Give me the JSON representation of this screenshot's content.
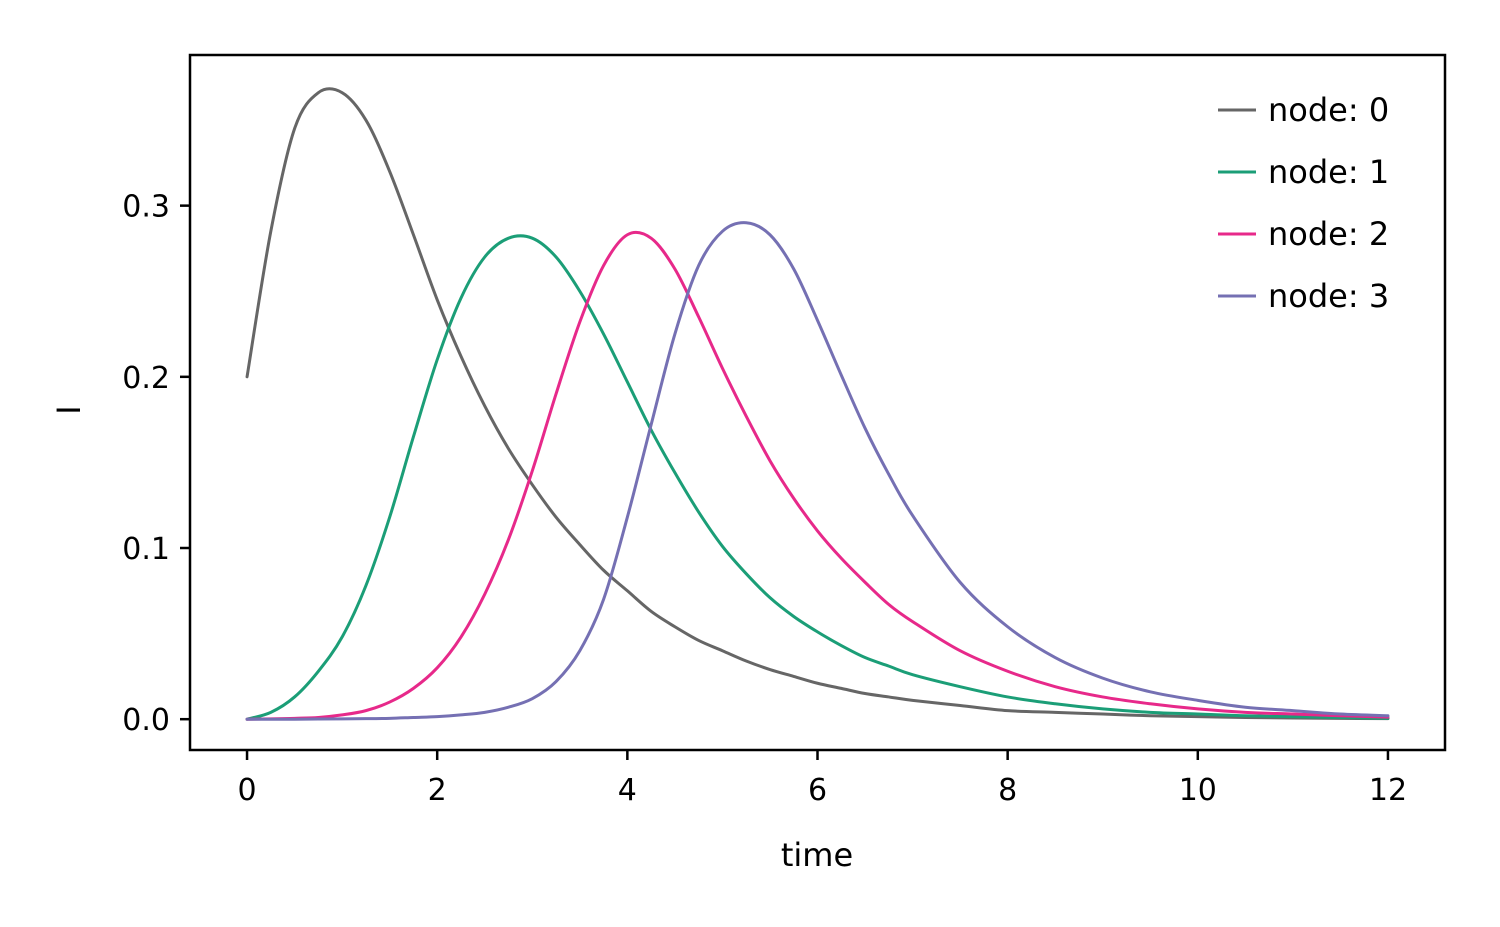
{
  "chart_data": {
    "type": "line",
    "title": "",
    "xlabel": "time",
    "ylabel": "I",
    "xlim": [
      -0.6,
      12.6
    ],
    "ylim": [
      -0.018,
      0.388
    ],
    "xticks": [
      0,
      2,
      4,
      6,
      8,
      10,
      12
    ],
    "xtick_labels": [
      "0",
      "2",
      "4",
      "6",
      "8",
      "10",
      "12"
    ],
    "yticks": [
      0.0,
      0.1,
      0.2,
      0.3
    ],
    "ytick_labels": [
      "0.0",
      "0.1",
      "0.2",
      "0.3"
    ],
    "grid": false,
    "legend_position": "top-right",
    "x": [
      0,
      0.25,
      0.5,
      0.75,
      1,
      1.25,
      1.5,
      1.75,
      2,
      2.25,
      2.5,
      2.75,
      3,
      3.25,
      3.5,
      3.75,
      4,
      4.25,
      4.5,
      4.75,
      5,
      5.25,
      5.5,
      5.75,
      6,
      6.25,
      6.5,
      6.75,
      7,
      7.5,
      8,
      8.5,
      9,
      9.5,
      10,
      10.5,
      11,
      11.5,
      12
    ],
    "series": [
      {
        "name": "node: 0",
        "color": "#666666",
        "values": [
          0.2,
          0.285,
          0.345,
          0.366,
          0.366,
          0.35,
          0.32,
          0.283,
          0.245,
          0.212,
          0.183,
          0.158,
          0.137,
          0.118,
          0.102,
          0.087,
          0.075,
          0.063,
          0.054,
          0.046,
          0.04,
          0.034,
          0.029,
          0.025,
          0.021,
          0.018,
          0.015,
          0.013,
          0.011,
          0.008,
          0.005,
          0.004,
          0.003,
          0.002,
          0.0015,
          0.001,
          0.0007,
          0.0005,
          0.0003
        ]
      },
      {
        "name": "node: 1",
        "color": "#1b9e77",
        "values": [
          0.0,
          0.004,
          0.013,
          0.028,
          0.048,
          0.078,
          0.118,
          0.165,
          0.21,
          0.246,
          0.27,
          0.281,
          0.281,
          0.27,
          0.25,
          0.225,
          0.197,
          0.169,
          0.144,
          0.121,
          0.101,
          0.085,
          0.071,
          0.06,
          0.051,
          0.043,
          0.036,
          0.031,
          0.026,
          0.019,
          0.013,
          0.009,
          0.006,
          0.004,
          0.003,
          0.002,
          0.0015,
          0.001,
          0.0005
        ]
      },
      {
        "name": "node: 2",
        "color": "#e7298a",
        "values": [
          0.0,
          0.0002,
          0.0005,
          0.001,
          0.0025,
          0.005,
          0.01,
          0.018,
          0.03,
          0.048,
          0.073,
          0.105,
          0.145,
          0.19,
          0.232,
          0.265,
          0.283,
          0.281,
          0.263,
          0.235,
          0.205,
          0.177,
          0.151,
          0.129,
          0.11,
          0.094,
          0.08,
          0.067,
          0.057,
          0.04,
          0.028,
          0.019,
          0.013,
          0.009,
          0.006,
          0.004,
          0.003,
          0.002,
          0.0012
        ]
      },
      {
        "name": "node: 3",
        "color": "#7570b3",
        "values": [
          0.0,
          0.0,
          0.0,
          0.0001,
          0.0002,
          0.0003,
          0.0005,
          0.001,
          0.0015,
          0.0025,
          0.004,
          0.007,
          0.012,
          0.022,
          0.04,
          0.07,
          0.118,
          0.172,
          0.225,
          0.265,
          0.285,
          0.29,
          0.283,
          0.263,
          0.233,
          0.201,
          0.17,
          0.143,
          0.119,
          0.08,
          0.054,
          0.036,
          0.024,
          0.016,
          0.011,
          0.007,
          0.005,
          0.003,
          0.002
        ]
      }
    ]
  }
}
